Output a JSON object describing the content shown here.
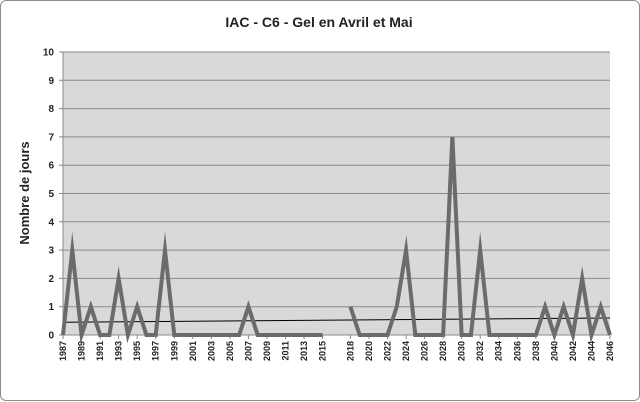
{
  "chart_data": {
    "type": "line",
    "title": "IAC - C6 - Gel en Avril et Mai",
    "ylabel": "Nombre de jours",
    "xlabel": "",
    "ylim": [
      0,
      10
    ],
    "yticks": [
      0,
      1,
      2,
      3,
      4,
      5,
      6,
      7,
      8,
      9,
      10
    ],
    "grid": true,
    "legend": "none",
    "x_tick_labels": [
      "1987",
      "1989",
      "1991",
      "1993",
      "1995",
      "1997",
      "1999",
      "2001",
      "2003",
      "2005",
      "2007",
      "2009",
      "2011",
      "2013",
      "2015",
      "2018",
      "2020",
      "2022",
      "2024",
      "2026",
      "2028",
      "2030",
      "2032",
      "2034",
      "2036",
      "2038",
      "2040",
      "2042",
      "2044",
      "2046"
    ],
    "series": [
      {
        "color": "#6b6b6b",
        "x": [
          1987,
          1988,
          1989,
          1990,
          1991,
          1992,
          1993,
          1994,
          1995,
          1996,
          1997,
          1998,
          1999,
          2000,
          2001,
          2002,
          2003,
          2004,
          2005,
          2006,
          2007,
          2008,
          2009,
          2010,
          2011,
          2012,
          2013,
          2014,
          2015,
          2016,
          2017,
          2018,
          2019,
          2020,
          2021,
          2022,
          2023,
          2024,
          2025,
          2026,
          2027,
          2028,
          2029,
          2030,
          2031,
          2032,
          2033,
          2034,
          2035,
          2036,
          2037,
          2038,
          2039,
          2040,
          2041,
          2042,
          2043,
          2044,
          2045,
          2046
        ],
        "values": [
          0,
          3,
          0,
          1,
          0,
          0,
          2,
          0,
          1,
          0,
          0,
          3,
          0,
          0,
          0,
          0,
          0,
          0,
          0,
          0,
          1,
          0,
          0,
          0,
          0,
          0,
          0,
          0,
          0,
          null,
          null,
          1,
          0,
          0,
          0,
          0,
          1,
          3,
          0,
          0,
          0,
          0,
          7,
          0,
          0,
          3,
          0,
          0,
          0,
          0,
          0,
          0,
          1,
          0,
          1,
          0,
          2,
          0,
          1,
          0
        ]
      }
    ],
    "trendline": {
      "color": "#000000",
      "start": [
        1987,
        0.45
      ],
      "end": [
        2046,
        0.6
      ]
    }
  }
}
